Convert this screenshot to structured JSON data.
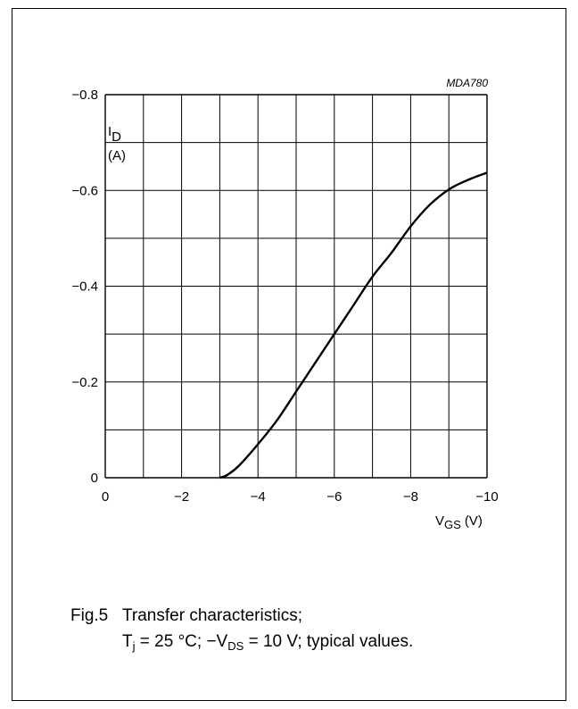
{
  "figure_code": "MDA780",
  "caption": {
    "number": "Fig.5",
    "title": "Transfer characteristics;",
    "cond_tj_symbol": "T",
    "cond_tj_sub": "j",
    "cond_tj_value": " = 25 °C; ",
    "cond_vds_prefix": "−V",
    "cond_vds_sub": "DS",
    "cond_vds_value": " = 10 V; typical values."
  },
  "chart_data": {
    "type": "line",
    "title": "",
    "ylabel_symbol": "I",
    "ylabel_sub": "D",
    "ylabel_unit": "(A)",
    "xlabel_symbol": "V",
    "xlabel_sub": "GS",
    "xlabel_unit": "(V)",
    "xlim": [
      0,
      -10
    ],
    "ylim": [
      0,
      -0.8
    ],
    "x_ticks": [
      {
        "value": 0,
        "label": "0"
      },
      {
        "value": -2,
        "label": "−2"
      },
      {
        "value": -4,
        "label": "−4"
      },
      {
        "value": -6,
        "label": "−6"
      },
      {
        "value": -8,
        "label": "−8"
      },
      {
        "value": -10,
        "label": "−10"
      }
    ],
    "y_ticks": [
      {
        "value": 0,
        "label": "0"
      },
      {
        "value": -0.2,
        "label": "−0.2"
      },
      {
        "value": -0.4,
        "label": "−0.4"
      },
      {
        "value": -0.6,
        "label": "−0.6"
      },
      {
        "value": -0.8,
        "label": "−0.8"
      }
    ],
    "grid": true,
    "grid_x_step": -1,
    "grid_y_step": -0.1,
    "line_color": "#000000",
    "series": [
      {
        "x": [
          -3.0,
          -3.2,
          -3.5,
          -4.0,
          -4.5,
          -5.0,
          -5.5,
          -6.0,
          -6.5,
          -7.0,
          -7.5,
          -8.0,
          -8.5,
          -9.0,
          -9.5,
          -10.0
        ],
        "y": [
          0.0,
          -0.006,
          -0.025,
          -0.07,
          -0.12,
          -0.18,
          -0.24,
          -0.3,
          -0.36,
          -0.42,
          -0.47,
          -0.525,
          -0.57,
          -0.602,
          -0.622,
          -0.637
        ]
      }
    ]
  }
}
